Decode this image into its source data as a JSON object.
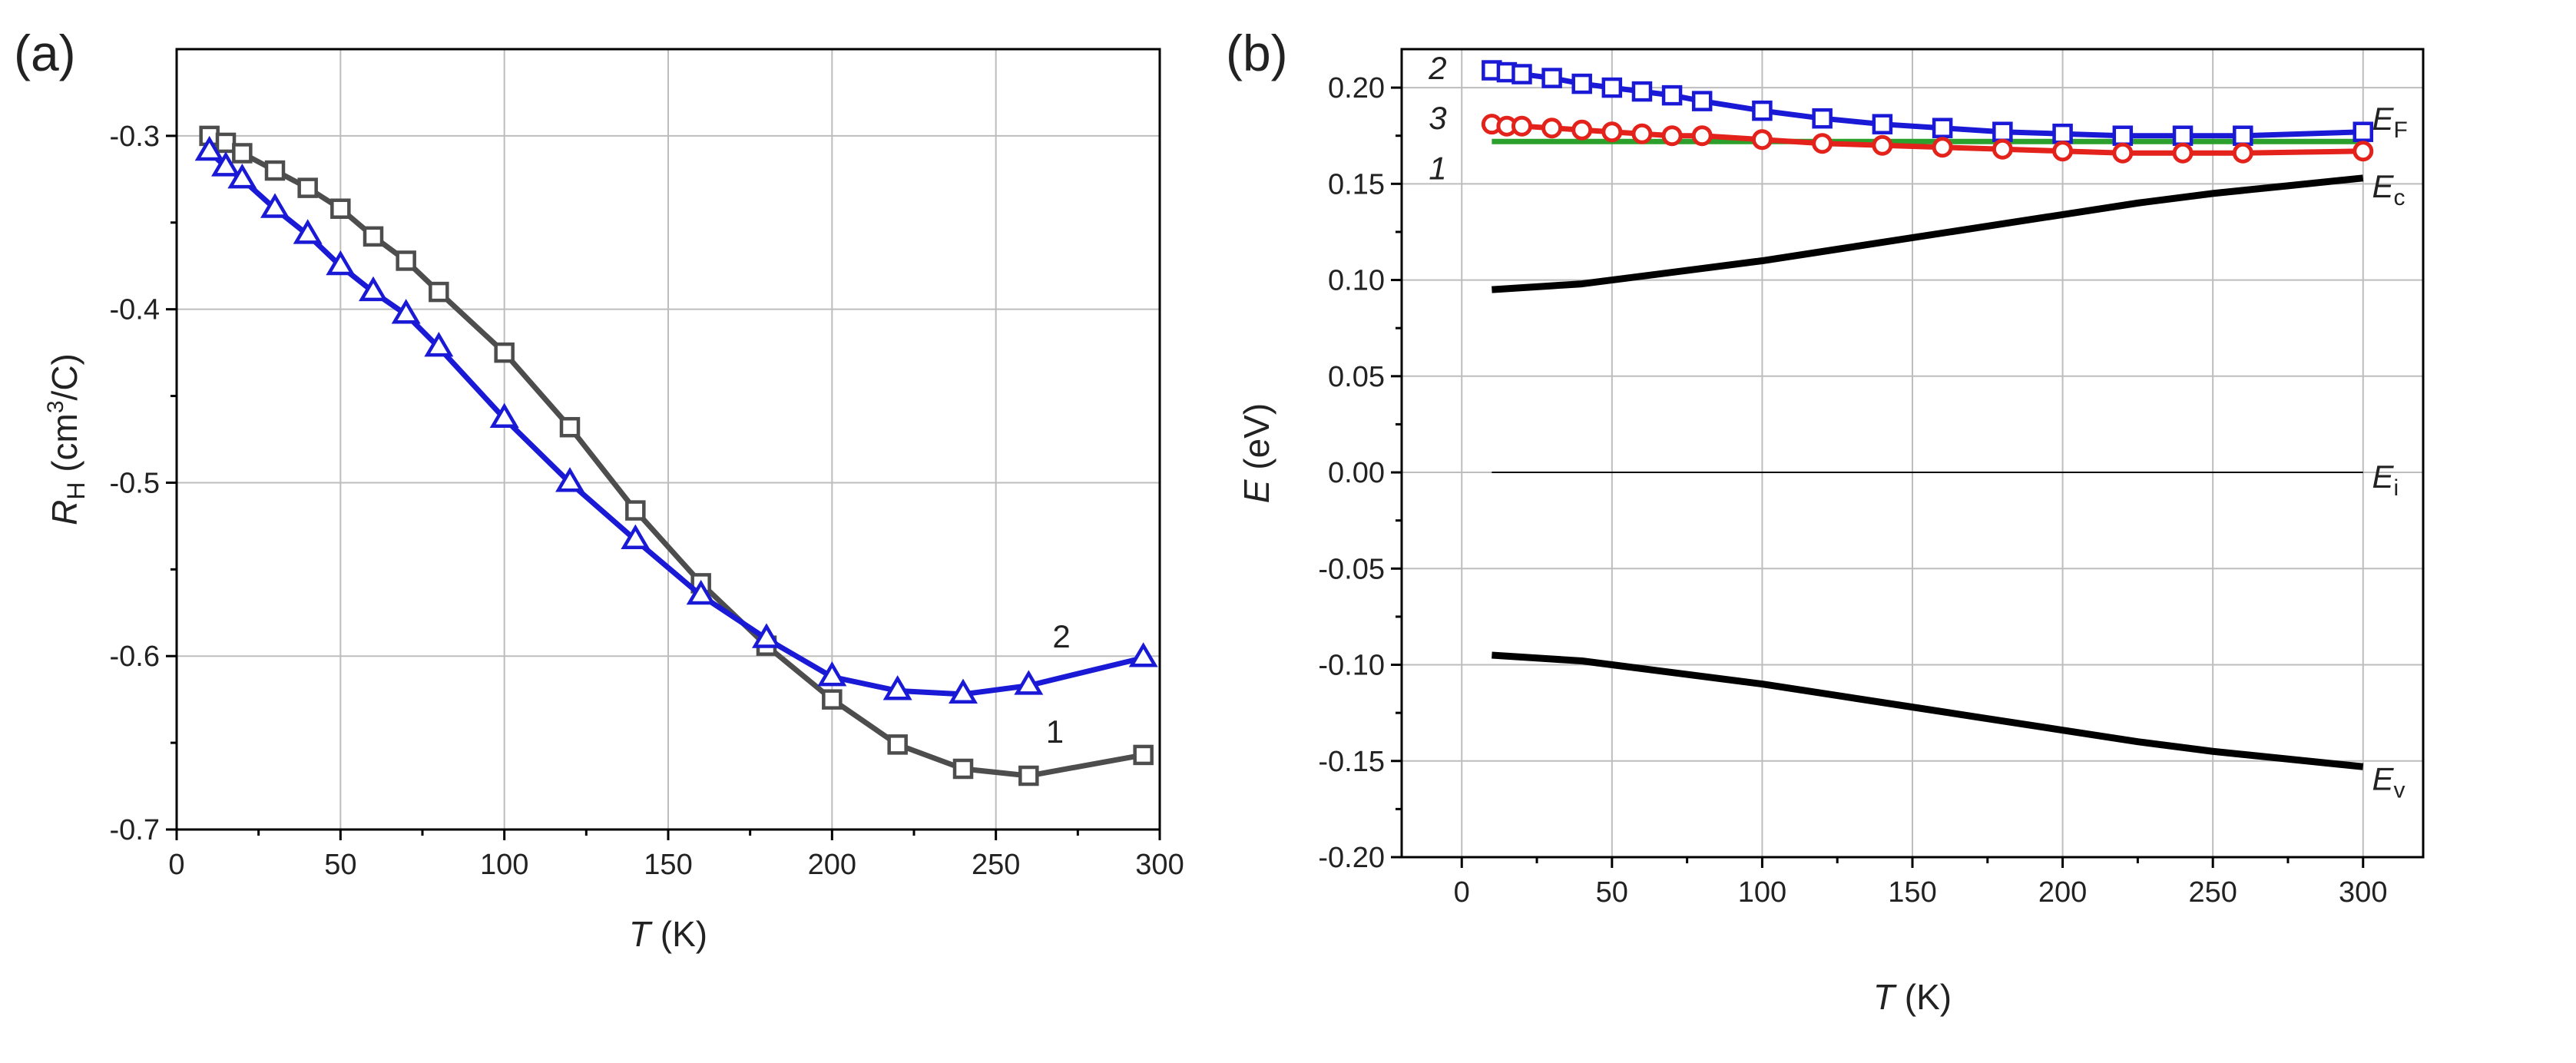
{
  "chart_data": [
    {
      "type": "line",
      "panel_label": "(a)",
      "xlabel_var": "T",
      "xlabel_unit": " (K)",
      "ylabel_var": "R",
      "ylabel_sub": "H",
      "ylabel_unit_pre": " (cm",
      "ylabel_unit_sup": "3",
      "ylabel_unit_post": "/C)",
      "xlim": [
        0,
        300
      ],
      "ylim": [
        -0.7,
        -0.25
      ],
      "xticks": [
        0,
        50,
        100,
        150,
        200,
        250,
        300
      ],
      "xtick_labels": [
        "0",
        "50",
        "100",
        "150",
        "200",
        "250",
        "300"
      ],
      "yticks": [
        -0.7,
        -0.6,
        -0.5,
        -0.4,
        -0.3
      ],
      "ytick_labels": [
        "-0.7",
        "-0.6",
        "-0.5",
        "-0.4",
        "-0.3"
      ],
      "grid": true,
      "series": [
        {
          "name": "1",
          "color": "#4d4d4d",
          "marker": "square",
          "x": [
            10,
            15,
            20,
            30,
            40,
            50,
            60,
            70,
            80,
            100,
            120,
            140,
            160,
            180,
            200,
            220,
            240,
            260,
            295
          ],
          "y": [
            -0.3,
            -0.304,
            -0.31,
            -0.32,
            -0.33,
            -0.342,
            -0.358,
            -0.372,
            -0.39,
            -0.425,
            -0.468,
            -0.516,
            -0.558,
            -0.594,
            -0.625,
            -0.651,
            -0.665,
            -0.669,
            -0.657
          ]
        },
        {
          "name": "2",
          "color": "#1a1ad6",
          "marker": "triangle",
          "x": [
            10,
            15,
            20,
            30,
            40,
            50,
            60,
            70,
            80,
            100,
            120,
            140,
            160,
            180,
            200,
            220,
            240,
            260,
            295
          ],
          "y": [
            -0.309,
            -0.318,
            -0.325,
            -0.342,
            -0.357,
            -0.375,
            -0.39,
            -0.403,
            -0.422,
            -0.463,
            -0.5,
            -0.533,
            -0.565,
            -0.59,
            -0.612,
            -0.62,
            -0.622,
            -0.617,
            -0.601
          ]
        }
      ],
      "annotations": [
        {
          "text": "2",
          "x": 270,
          "y": -0.595
        },
        {
          "text": "1",
          "x": 268,
          "y": -0.65
        }
      ]
    },
    {
      "type": "line",
      "panel_label": "(b)",
      "xlabel_var": "T",
      "xlabel_unit": " (K)",
      "ylabel_var": "E",
      "ylabel_unit": " (eV)",
      "xlim": [
        -20,
        320
      ],
      "ylim": [
        -0.2,
        0.22
      ],
      "xticks": [
        0,
        50,
        100,
        150,
        200,
        250,
        300
      ],
      "xtick_labels": [
        "0",
        "50",
        "100",
        "150",
        "200",
        "250",
        "300"
      ],
      "yticks": [
        -0.2,
        -0.15,
        -0.1,
        -0.05,
        0.0,
        0.05,
        0.1,
        0.15,
        0.2
      ],
      "ytick_labels": [
        "-0.20",
        "-0.15",
        "-0.10",
        "-0.05",
        "0.00",
        "0.05",
        "0.10",
        "0.15",
        "0.20"
      ],
      "grid": true,
      "series": [
        {
          "name": "1",
          "color": "#2ca02c",
          "marker": "none",
          "x": [
            10,
            300
          ],
          "y": [
            0.172,
            0.172
          ]
        },
        {
          "name": "2",
          "color": "#1a1ad6",
          "marker": "square",
          "x": [
            10,
            15,
            20,
            30,
            40,
            50,
            60,
            70,
            80,
            100,
            120,
            140,
            160,
            180,
            200,
            220,
            240,
            260,
            300
          ],
          "y": [
            0.209,
            0.208,
            0.207,
            0.205,
            0.202,
            0.2,
            0.198,
            0.196,
            0.193,
            0.188,
            0.184,
            0.181,
            0.179,
            0.177,
            0.176,
            0.175,
            0.175,
            0.175,
            0.177
          ]
        },
        {
          "name": "3",
          "color": "#e3231b",
          "marker": "circle",
          "x": [
            10,
            15,
            20,
            30,
            40,
            50,
            60,
            70,
            80,
            100,
            120,
            140,
            160,
            180,
            200,
            220,
            240,
            260,
            300
          ],
          "y": [
            0.181,
            0.18,
            0.18,
            0.179,
            0.178,
            0.177,
            0.176,
            0.175,
            0.175,
            0.173,
            0.171,
            0.17,
            0.169,
            0.168,
            0.167,
            0.166,
            0.166,
            0.166,
            0.167
          ]
        },
        {
          "name": "Ec",
          "color": "#000000",
          "marker": "none",
          "x": [
            10,
            20,
            30,
            40,
            50,
            75,
            100,
            125,
            150,
            175,
            200,
            225,
            250,
            275,
            300
          ],
          "y": [
            0.095,
            0.096,
            0.097,
            0.098,
            0.1,
            0.105,
            0.11,
            0.116,
            0.122,
            0.128,
            0.134,
            0.14,
            0.145,
            0.149,
            0.153
          ]
        },
        {
          "name": "Ei",
          "color": "#000000",
          "marker": "none",
          "x": [
            10,
            300
          ],
          "y": [
            0.0,
            0.0
          ]
        },
        {
          "name": "Ev",
          "color": "#000000",
          "marker": "none",
          "x": [
            10,
            20,
            30,
            40,
            50,
            75,
            100,
            125,
            150,
            175,
            200,
            225,
            250,
            275,
            300
          ],
          "y": [
            -0.095,
            -0.096,
            -0.097,
            -0.098,
            -0.1,
            -0.105,
            -0.11,
            -0.116,
            -0.122,
            -0.128,
            -0.134,
            -0.14,
            -0.145,
            -0.149,
            -0.153
          ]
        }
      ],
      "curve_labels": [
        {
          "text": "2",
          "x": -8,
          "y": 0.21
        },
        {
          "text": "3",
          "x": -8,
          "y": 0.184
        },
        {
          "text": "1",
          "x": -8,
          "y": 0.158
        }
      ],
      "energy_labels": [
        {
          "main": "E",
          "sub": "F",
          "x": 303,
          "y": 0.178
        },
        {
          "main": "E",
          "sub": "c",
          "x": 303,
          "y": 0.143
        },
        {
          "main": "E",
          "sub": "i",
          "x": 303,
          "y": -0.008
        },
        {
          "main": "E",
          "sub": "v",
          "x": 303,
          "y": -0.165
        }
      ]
    }
  ]
}
